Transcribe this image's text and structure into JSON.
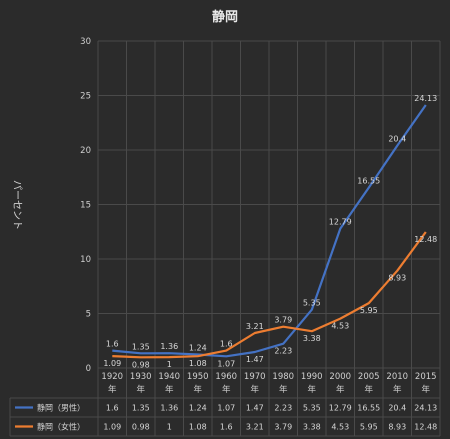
{
  "chart_data": {
    "type": "line",
    "title": "静岡",
    "ylabel": "パーセント",
    "ylim": [
      0,
      30
    ],
    "yticks": [
      0,
      5,
      10,
      15,
      20,
      25,
      30
    ],
    "grid": true,
    "legend": "data-table",
    "categories": [
      "1920年",
      "1930年",
      "1940年",
      "1950年",
      "1960年",
      "1970年",
      "1980年",
      "1990年",
      "2000年",
      "2005年",
      "2010年",
      "2015年"
    ],
    "series": [
      {
        "name": "静岡（男性）",
        "color": "#4472c4",
        "values": [
          1.6,
          1.35,
          1.36,
          1.24,
          1.07,
          1.47,
          2.23,
          5.35,
          12.79,
          16.55,
          20.4,
          24.13
        ]
      },
      {
        "name": "静岡（女性）",
        "color": "#ed7d31",
        "values": [
          1.09,
          0.98,
          1,
          1.08,
          1.6,
          3.21,
          3.79,
          3.38,
          4.53,
          5.95,
          8.93,
          12.48
        ]
      }
    ]
  }
}
